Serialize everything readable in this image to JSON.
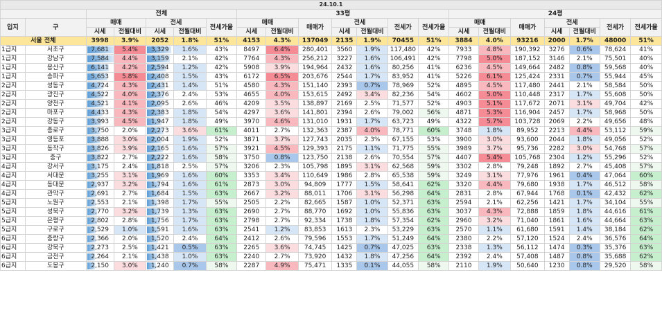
{
  "header": {
    "date": "24.10.1",
    "groups": [
      "전체",
      "33평",
      "24평"
    ],
    "col_area": "입지",
    "col_gu": "구",
    "sub_maemae": "매매",
    "sub_jeonse": "전세",
    "col_price": "시세",
    "col_rate": "전월대비",
    "col_ratio": "전세가율",
    "col_mm_price": "매매가",
    "col_js_price": "전세가"
  },
  "seoul_total": {
    "area": "서울 전체",
    "all": [
      "3998",
      "3.9%",
      "2052",
      "1.8%",
      "51%"
    ],
    "p33": [
      "4153",
      "4.3%",
      "137049",
      "2135",
      "1.9%",
      "70455",
      "51%"
    ],
    "p24": [
      "3884",
      "4.0%",
      "93216",
      "2000",
      "1.7%",
      "48000",
      "51%"
    ]
  },
  "rows": [
    {
      "area": "1급지",
      "gu": "서초구",
      "all": [
        "7,681",
        "5.4%",
        "3,329",
        "1.6%",
        "43%"
      ],
      "p33": [
        "8497",
        "6.4%",
        "280,401",
        "3560",
        "1.9%",
        "117,480",
        "42%"
      ],
      "p24": [
        "7933",
        "4.8%",
        "190,392",
        "3276",
        "0.6%",
        "78,624",
        "41%"
      ],
      "bar_mm": 1.0,
      "bar_js": 0.9
    },
    {
      "area": "1급지",
      "gu": "강남구",
      "all": [
        "7,584",
        "4.4%",
        "3,159",
        "2.1%",
        "42%"
      ],
      "p33": [
        "7764",
        "4.3%",
        "256,212",
        "3227",
        "1.6%",
        "106,491",
        "42%"
      ],
      "p24": [
        "7798",
        "5.0%",
        "187,152",
        "3146",
        "2.1%",
        "75,501",
        "40%"
      ],
      "bar_mm": 0.99,
      "bar_js": 0.85
    },
    {
      "area": "1급지",
      "gu": "용산구",
      "all": [
        "6,141",
        "4.2%",
        "2,594",
        "1.2%",
        "42%"
      ],
      "p33": [
        "5908",
        "3.9%",
        "194,964",
        "2432",
        "1.6%",
        "80,256",
        "41%"
      ],
      "p24": [
        "6236",
        "4.5%",
        "149,664",
        "2482",
        "0.8%",
        "59,568",
        "40%"
      ],
      "bar_mm": 0.8,
      "bar_js": 0.7
    },
    {
      "area": "1급지",
      "gu": "송파구",
      "all": [
        "5,653",
        "5.8%",
        "2,408",
        "1.5%",
        "43%"
      ],
      "p33": [
        "6172",
        "6.5%",
        "203,676",
        "2544",
        "1.7%",
        "83,952",
        "41%"
      ],
      "p24": [
        "5226",
        "6.1%",
        "125,424",
        "2331",
        "0.7%",
        "55,944",
        "45%"
      ],
      "bar_mm": 0.74,
      "bar_js": 0.65
    },
    {
      "area": "2급지",
      "gu": "성동구",
      "all": [
        "4,724",
        "4.3%",
        "2,431",
        "1.4%",
        "51%"
      ],
      "p33": [
        "4580",
        "4.3%",
        "151,140",
        "2393",
        "0.7%",
        "78,969",
        "52%"
      ],
      "p24": [
        "4895",
        "4.5%",
        "117,480",
        "2441",
        "2.1%",
        "58,584",
        "50%"
      ],
      "bar_mm": 0.61,
      "bar_js": 0.66
    },
    {
      "area": "2급지",
      "gu": "광진구",
      "all": [
        "4,522",
        "4.0%",
        "2,376",
        "2.4%",
        "53%"
      ],
      "p33": [
        "4655",
        "4.0%",
        "153,615",
        "2492",
        "3.4%",
        "82,236",
        "54%"
      ],
      "p24": [
        "4602",
        "5.0%",
        "110,448",
        "2317",
        "1.7%",
        "55,608",
        "50%"
      ],
      "bar_mm": 0.59,
      "bar_js": 0.64
    },
    {
      "area": "2급지",
      "gu": "양천구",
      "all": [
        "4,521",
        "4.1%",
        "2,095",
        "2.6%",
        "46%"
      ],
      "p33": [
        "4209",
        "3.5%",
        "138,897",
        "2169",
        "2.5%",
        "71,577",
        "52%"
      ],
      "p24": [
        "4903",
        "5.1%",
        "117,672",
        "2071",
        "3.1%",
        "49,704",
        "42%"
      ],
      "bar_mm": 0.59,
      "bar_js": 0.56
    },
    {
      "area": "2급지",
      "gu": "마포구",
      "all": [
        "4,433",
        "4.3%",
        "2,383",
        "1.8%",
        "54%"
      ],
      "p33": [
        "4297",
        "3.6%",
        "141,801",
        "2394",
        "2.6%",
        "79,002",
        "56%"
      ],
      "p24": [
        "4871",
        "5.3%",
        "116,904",
        "2457",
        "1.7%",
        "58,968",
        "50%"
      ],
      "bar_mm": 0.58,
      "bar_js": 0.64
    },
    {
      "area": "2급지",
      "gu": "강동구",
      "all": [
        "3,993",
        "4.5%",
        "1,947",
        "1.8%",
        "49%"
      ],
      "p33": [
        "3970",
        "4.6%",
        "131,010",
        "1931",
        "1.7%",
        "63,723",
        "49%"
      ],
      "p24": [
        "4322",
        "5.7%",
        "103,728",
        "2069",
        "2.2%",
        "49,656",
        "48%"
      ],
      "bar_mm": 0.52,
      "bar_js": 0.52
    },
    {
      "area": "3급지",
      "gu": "종로구",
      "all": [
        "3,750",
        "2.0%",
        "2,273",
        "3.6%",
        "61%"
      ],
      "p33": [
        "4011",
        "2.7%",
        "132,363",
        "2387",
        "4.0%",
        "78,771",
        "60%"
      ],
      "p24": [
        "3748",
        "1.8%",
        "89,952",
        "2213",
        "4.4%",
        "53,112",
        "59%"
      ],
      "bar_mm": 0.49,
      "bar_js": 0.61
    },
    {
      "area": "3급지",
      "gu": "영등포",
      "all": [
        "3,888",
        "3.0%",
        "2,004",
        "1.9%",
        "52%"
      ],
      "p33": [
        "3871",
        "3.7%",
        "127,743",
        "2035",
        "2.3%",
        "67,155",
        "53%"
      ],
      "p24": [
        "3900",
        "3.0%",
        "93,600",
        "2044",
        "1.8%",
        "49,056",
        "52%"
      ],
      "bar_mm": 0.5,
      "bar_js": 0.54
    },
    {
      "area": "3급지",
      "gu": "동작구",
      "all": [
        "3,826",
        "3.9%",
        "2,165",
        "1.6%",
        "57%"
      ],
      "p33": [
        "3921",
        "4.5%",
        "129,393",
        "2175",
        "1.1%",
        "71,775",
        "55%"
      ],
      "p24": [
        "3989",
        "3.7%",
        "95,736",
        "2282",
        "3.0%",
        "54,768",
        "57%"
      ],
      "bar_mm": 0.5,
      "bar_js": 0.58
    },
    {
      "area": "3급지",
      "gu": "중구",
      "all": [
        "3,822",
        "2.7%",
        "2,222",
        "1.6%",
        "58%"
      ],
      "p33": [
        "3750",
        "0.8%",
        "123,750",
        "2138",
        "2.6%",
        "70,554",
        "57%"
      ],
      "p24": [
        "4407",
        "5.4%",
        "105,768",
        "2304",
        "1.2%",
        "55,296",
        "52%"
      ],
      "bar_mm": 0.5,
      "bar_js": 0.6
    },
    {
      "area": "4급지",
      "gu": "강서구",
      "all": [
        "3,175",
        "2.4%",
        "1,818",
        "2.5%",
        "57%"
      ],
      "p33": [
        "3206",
        "2.3%",
        "105,798",
        "1895",
        "3.1%",
        "62,568",
        "59%"
      ],
      "p24": [
        "3302",
        "2.8%",
        "79,248",
        "1892",
        "2.7%",
        "45,408",
        "57%"
      ],
      "bar_mm": 0.41,
      "bar_js": 0.49
    },
    {
      "area": "4급지",
      "gu": "서대문",
      "all": [
        "3,255",
        "3.1%",
        "1,969",
        "1.6%",
        "60%"
      ],
      "p33": [
        "3353",
        "3.4%",
        "110,649",
        "1986",
        "2.8%",
        "65,538",
        "59%"
      ],
      "p24": [
        "3249",
        "3.1%",
        "77,976",
        "1961",
        "0.4%",
        "47,064",
        "60%"
      ],
      "bar_mm": 0.42,
      "bar_js": 0.53
    },
    {
      "area": "4급지",
      "gu": "동대문",
      "all": [
        "2,937",
        "3.2%",
        "1,794",
        "1.6%",
        "61%"
      ],
      "p33": [
        "2873",
        "3.0%",
        "94,809",
        "1777",
        "1.5%",
        "58,641",
        "62%"
      ],
      "p24": [
        "3320",
        "4.4%",
        "79,680",
        "1938",
        "1.7%",
        "46,512",
        "58%"
      ],
      "bar_mm": 0.38,
      "bar_js": 0.48
    },
    {
      "area": "4급지",
      "gu": "관악구",
      "all": [
        "2,691",
        "2.7%",
        "1,684",
        "1.5%",
        "63%"
      ],
      "p33": [
        "2667",
        "3.2%",
        "88,011",
        "1706",
        "3.1%",
        "56,298",
        "64%"
      ],
      "p24": [
        "2831",
        "2.8%",
        "67,944",
        "1768",
        "0.1%",
        "42,432",
        "62%"
      ],
      "bar_mm": 0.35,
      "bar_js": 0.45
    },
    {
      "area": "5급지",
      "gu": "노원구",
      "all": [
        "2,553",
        "2.1%",
        "1,398",
        "1.7%",
        "55%"
      ],
      "p33": [
        "2505",
        "2.2%",
        "82,665",
        "1587",
        "1.0%",
        "52,371",
        "63%"
      ],
      "p24": [
        "2594",
        "2.1%",
        "62,256",
        "1421",
        "1.7%",
        "34,104",
        "55%"
      ],
      "bar_mm": 0.33,
      "bar_js": 0.38
    },
    {
      "area": "5급지",
      "gu": "성북구",
      "all": [
        "2,770",
        "3.2%",
        "1,739",
        "1.3%",
        "63%"
      ],
      "p33": [
        "2690",
        "2.7%",
        "88,770",
        "1692",
        "1.0%",
        "55,836",
        "63%"
      ],
      "p24": [
        "3037",
        "4.3%",
        "72,888",
        "1859",
        "1.8%",
        "44,616",
        "61%"
      ],
      "bar_mm": 0.36,
      "bar_js": 0.47
    },
    {
      "area": "5급지",
      "gu": "은평구",
      "all": [
        "2,802",
        "2.8%",
        "1,756",
        "1.7%",
        "63%"
      ],
      "p33": [
        "2798",
        "2.7%",
        "92,334",
        "1738",
        "1.8%",
        "57,354",
        "62%"
      ],
      "p24": [
        "2960",
        "3.2%",
        "71,040",
        "1861",
        "1.6%",
        "44,664",
        "63%"
      ],
      "bar_mm": 0.36,
      "bar_js": 0.47
    },
    {
      "area": "5급지",
      "gu": "구로구",
      "all": [
        "2,529",
        "1.0%",
        "1,591",
        "1.6%",
        "63%"
      ],
      "p33": [
        "2541",
        "1.2%",
        "83,853",
        "1613",
        "2.3%",
        "53,229",
        "63%"
      ],
      "p24": [
        "2570",
        "1.1%",
        "61,680",
        "1591",
        "1.4%",
        "38,184",
        "62%"
      ],
      "bar_mm": 0.33,
      "bar_js": 0.43
    },
    {
      "area": "6급지",
      "gu": "중랑구",
      "all": [
        "2,366",
        "2.0%",
        "1,520",
        "2.4%",
        "64%"
      ],
      "p33": [
        "2412",
        "2.6%",
        "79,596",
        "1553",
        "1.7%",
        "51,249",
        "64%"
      ],
      "p24": [
        "2380",
        "2.2%",
        "57,120",
        "1524",
        "2.4%",
        "36,576",
        "64%"
      ],
      "bar_mm": 0.31,
      "bar_js": 0.41
    },
    {
      "area": "6급지",
      "gu": "강북구",
      "all": [
        "2,273",
        "2.5%",
        "1,421",
        "0.5%",
        "63%"
      ],
      "p33": [
        "2265",
        "3.6%",
        "74,745",
        "1425",
        "0.7%",
        "47,025",
        "63%"
      ],
      "p24": [
        "2338",
        "1.3%",
        "56,112",
        "1474",
        "0.3%",
        "35,376",
        "63%"
      ],
      "bar_mm": 0.3,
      "bar_js": 0.38
    },
    {
      "area": "6급지",
      "gu": "금천구",
      "all": [
        "2,264",
        "2.1%",
        "1,438",
        "1.0%",
        "63%"
      ],
      "p33": [
        "2240",
        "2.7%",
        "73,920",
        "1432",
        "1.8%",
        "47,256",
        "64%"
      ],
      "p24": [
        "2392",
        "2.4%",
        "57,408",
        "1487",
        "0.8%",
        "35,688",
        "62%"
      ],
      "bar_mm": 0.29,
      "bar_js": 0.39
    },
    {
      "area": "6급지",
      "gu": "도봉구",
      "all": [
        "2,150",
        "3.0%",
        "1,240",
        "0.7%",
        "58%"
      ],
      "p33": [
        "2287",
        "4.9%",
        "75,471",
        "1335",
        "0.1%",
        "44,055",
        "58%"
      ],
      "p24": [
        "2110",
        "1.9%",
        "50,640",
        "1230",
        "0.8%",
        "29,520",
        "58%"
      ],
      "bar_mm": 0.28,
      "bar_js": 0.33
    }
  ]
}
